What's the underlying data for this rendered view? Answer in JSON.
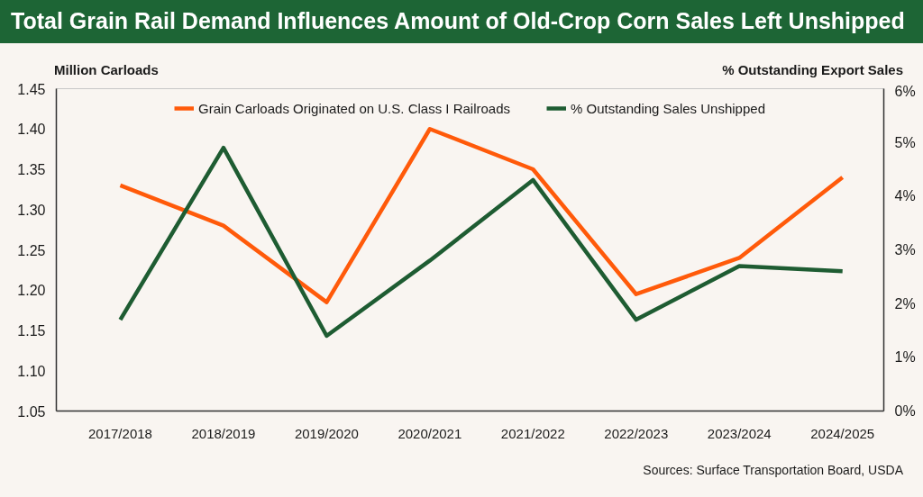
{
  "chart_data": {
    "type": "line",
    "title": "Total Grain Rail Demand Influences Amount of Old-Crop Corn Sales Left Unshipped",
    "ylabel": "Million Carloads",
    "y2label": "% Outstanding Export Sales",
    "annotations": [
      "Sources: Surface Transportation Board, USDA"
    ],
    "categories": [
      "2017/2018",
      "2018/2019",
      "2019/2020",
      "2020/2021",
      "2021/2022",
      "2022/2023",
      "2023/2024",
      "2024/2025"
    ],
    "series": [
      {
        "name": "Grain Carloads Originated on U.S. Class I Railroads",
        "color": "#ff5a0a",
        "values": [
          1.33,
          1.28,
          1.185,
          1.4,
          1.35,
          1.195,
          1.24,
          1.34
        ]
      },
      {
        "name": "% Outstanding Sales Unshipped",
        "color": "#1e5c32",
        "axis": "y2",
        "values": [
          1.7,
          4.9,
          1.4,
          2.8,
          4.3,
          1.7,
          2.7,
          2.6
        ]
      }
    ],
    "ylim": [
      1.05,
      1.45
    ],
    "yticks": [
      1.05,
      {
        "value": 1.1,
        "label": "1.10"
      },
      1.15,
      {
        "value": 1.2,
        "label": "1.20"
      },
      1.25,
      {
        "value": 1.3,
        "label": "1.30"
      },
      1.35,
      {
        "value": 1.4,
        "label": "1.40"
      },
      1.45
    ],
    "y2lim": [
      0,
      6
    ],
    "y2ticks": [
      {
        "value": 0,
        "label": "0%"
      },
      {
        "value": 1,
        "label": "1%"
      },
      {
        "value": 2,
        "label": "2%"
      },
      {
        "value": 3,
        "label": "3%"
      },
      {
        "value": 4,
        "label": "4%"
      },
      {
        "value": 5,
        "label": "5%"
      },
      {
        "value": 6,
        "label": "6%"
      }
    ],
    "grid": false,
    "legend": "top",
    "line_style": "solid"
  }
}
